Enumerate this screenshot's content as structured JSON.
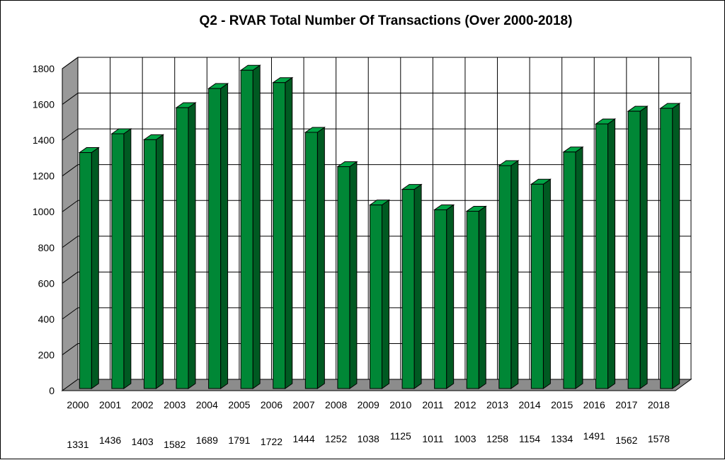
{
  "chart_data": {
    "type": "bar",
    "title": "Q2 - RVAR  Total Number Of Transactions (Over 2000-2018)",
    "xlabel": "",
    "ylabel": "",
    "ylim": [
      0,
      1800
    ],
    "yticks": [
      "0",
      "200",
      "400",
      "600",
      "800",
      "1000",
      "1200",
      "1400",
      "1600",
      "1800"
    ],
    "grid": true,
    "legend": "none",
    "style": "3d",
    "categories": [
      "2000",
      "2001",
      "2002",
      "2003",
      "2004",
      "2005",
      "2006",
      "2007",
      "2008",
      "2009",
      "2010",
      "2011",
      "2012",
      "2013",
      "2014",
      "2015",
      "2016",
      "2017",
      "2018"
    ],
    "values": [
      1331,
      1436,
      1403,
      1582,
      1689,
      1791,
      1722,
      1444,
      1252,
      1038,
      1125,
      1011,
      1003,
      1258,
      1154,
      1334,
      1491,
      1562,
      1578
    ],
    "value_labels": [
      "1331",
      "1436",
      "1403",
      "1582",
      "1689",
      "1791",
      "1722",
      "1444",
      "1252",
      "1038",
      "1125",
      "1011",
      "1003",
      "1258",
      "1154",
      "1334",
      "1491",
      "1562",
      "1578"
    ],
    "colors": {
      "bar_front": "#008736",
      "bar_side": "#005a22",
      "bar_top": "#00a545",
      "wall_side": "#999999",
      "floor": "#8c8c8c",
      "grid": "#000000"
    }
  }
}
